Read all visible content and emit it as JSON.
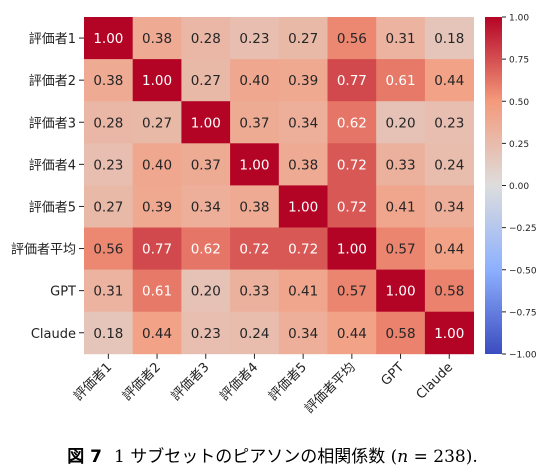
{
  "chart_data": {
    "type": "heatmap",
    "row_labels": [
      "評価者1",
      "評価者2",
      "評価者3",
      "評価者4",
      "評価者5",
      "評価者平均",
      "GPT",
      "Claude"
    ],
    "col_labels": [
      "評価者1",
      "評価者2",
      "評価者3",
      "評価者4",
      "評価者5",
      "評価者平均",
      "GPT",
      "Claude"
    ],
    "values": [
      [
        1.0,
        0.38,
        0.28,
        0.23,
        0.27,
        0.56,
        0.31,
        0.18
      ],
      [
        0.38,
        1.0,
        0.27,
        0.4,
        0.39,
        0.77,
        0.61,
        0.44
      ],
      [
        0.28,
        0.27,
        1.0,
        0.37,
        0.34,
        0.62,
        0.2,
        0.23
      ],
      [
        0.23,
        0.4,
        0.37,
        1.0,
        0.38,
        0.72,
        0.33,
        0.24
      ],
      [
        0.27,
        0.39,
        0.34,
        0.38,
        1.0,
        0.72,
        0.41,
        0.34
      ],
      [
        0.56,
        0.77,
        0.62,
        0.72,
        0.72,
        1.0,
        0.57,
        0.44
      ],
      [
        0.31,
        0.61,
        0.2,
        0.33,
        0.41,
        0.57,
        1.0,
        0.58
      ],
      [
        0.18,
        0.44,
        0.23,
        0.24,
        0.34,
        0.44,
        0.58,
        1.0
      ]
    ],
    "colorbar": {
      "range": [
        -1.0,
        1.0
      ],
      "ticks": [
        "1.00",
        "0.75",
        "0.50",
        "0.25",
        "0.00",
        "−0.25",
        "−0.50",
        "−0.75",
        "−1.00"
      ],
      "colormap": "coolwarm",
      "low_color": "#3b4cc0",
      "mid_color": "#dddddd",
      "high_color": "#b40426"
    }
  },
  "caption": {
    "label": "図 7",
    "text": "1 サブセットのピアソンの相関係数 (",
    "n_symbol": "n",
    "n_value": " = 238)."
  }
}
